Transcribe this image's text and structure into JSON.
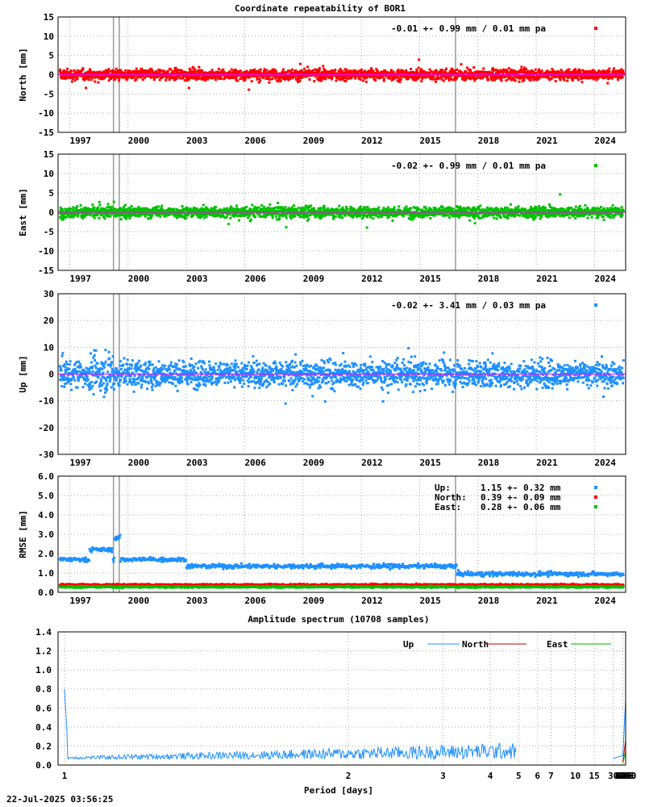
{
  "figure": {
    "title": "Coordinate repeatability of BOR1",
    "footer": "22-Jul-2025 03:56:25",
    "years": [
      1997,
      2000,
      2003,
      2006,
      2009,
      2012,
      2015,
      2018,
      2021,
      2024
    ],
    "x_range": [
      1996.4,
      2025.6
    ]
  },
  "chart_data": [
    {
      "type": "scatter",
      "ylabel": "North [mm]",
      "ylim": [
        -15,
        15
      ],
      "yticks": [
        -15,
        -10,
        -5,
        0,
        5,
        10,
        15
      ],
      "color": "#ff0000",
      "stat": "-0.01 +- 0.99 mm /  0.01 mm pa",
      "spread": 0.99,
      "grid": true
    },
    {
      "type": "scatter",
      "ylabel": "East [mm]",
      "ylim": [
        -15,
        15
      ],
      "yticks": [
        -15,
        -10,
        -5,
        0,
        5,
        10,
        15
      ],
      "color": "#00c000",
      "stat": "-0.02 +- 0.99 mm /  0.01 mm pa",
      "spread": 0.99,
      "grid": true
    },
    {
      "type": "scatter",
      "ylabel": "Up [mm]",
      "ylim": [
        -30,
        30
      ],
      "yticks": [
        -30,
        -20,
        -10,
        0,
        10,
        20,
        30
      ],
      "color": "#1e90ff",
      "stat": "-0.02 +- 3.41 mm /  0.03 mm pa",
      "spread": 3.41,
      "grid": true
    },
    {
      "type": "scatter",
      "ylabel": "RMSE [mm]",
      "ylim": [
        0,
        6
      ],
      "yticks": [
        "0.0",
        "1.0",
        "2.0",
        "3.0",
        "4.0",
        "5.0",
        "6.0"
      ],
      "legend": [
        {
          "name": "Up:",
          "value": "1.15 +- 0.32 mm",
          "color": "#1e90ff",
          "mean": 1.15
        },
        {
          "name": "North:",
          "value": "0.39 +- 0.09 mm",
          "color": "#ff0000",
          "mean": 0.39
        },
        {
          "name": "East:",
          "value": "0.28 +- 0.06 mm",
          "color": "#00c000",
          "mean": 0.28
        }
      ],
      "grid": true
    },
    {
      "type": "line",
      "title": "Amplitude spectrum (10708 samples)",
      "xlabel": "Period [days]",
      "x_scale": "reciprocal",
      "xticks": [
        1,
        2,
        3,
        4,
        5,
        6,
        7,
        10,
        15,
        30,
        61,
        91,
        122,
        183,
        365,
        730,
        2190,
        4380,
        8760
      ],
      "ylim": [
        0,
        1.4
      ],
      "yticks": [
        "0.0",
        "0.2",
        "0.4",
        "0.6",
        "0.8",
        "1.0",
        "1.2",
        "1.4"
      ],
      "series": [
        {
          "name": "Up",
          "color": "#1e90ff",
          "x": [
            8760,
            4380,
            2920,
            2190,
            1460,
            1095,
            876,
            730,
            547,
            487,
            438,
            365,
            313,
            243,
            183,
            122,
            91,
            61,
            30
          ],
          "y": [
            0.69,
            0.77,
            0.52,
            0.48,
            0.27,
            0.1,
            0.21,
            0.3,
            0.48,
            0.38,
            0.3,
            0.45,
            0.22,
            0.28,
            0.35,
            0.2,
            0.12,
            0.1,
            0.07
          ]
        },
        {
          "name": "North",
          "color": "#c00000",
          "x": [
            8760,
            4380,
            2920,
            2190,
            1460,
            1095,
            876,
            730,
            547,
            365,
            243,
            183,
            122,
            61
          ],
          "y": [
            0.26,
            0.3,
            0.23,
            0.15,
            0.18,
            0.07,
            0.1,
            0.06,
            0.1,
            0.12,
            0.08,
            0.05,
            0.04,
            0.03
          ]
        },
        {
          "name": "East",
          "color": "#00b000",
          "x": [
            8760,
            4380,
            2920,
            2190,
            1460,
            1095,
            876,
            730,
            547,
            365,
            243,
            183,
            122,
            61
          ],
          "y": [
            0.14,
            0.16,
            0.09,
            0.08,
            0.2,
            0.12,
            0.07,
            0.09,
            0.08,
            0.26,
            0.1,
            0.04,
            0.03,
            0.02
          ]
        }
      ],
      "grid": true
    }
  ]
}
